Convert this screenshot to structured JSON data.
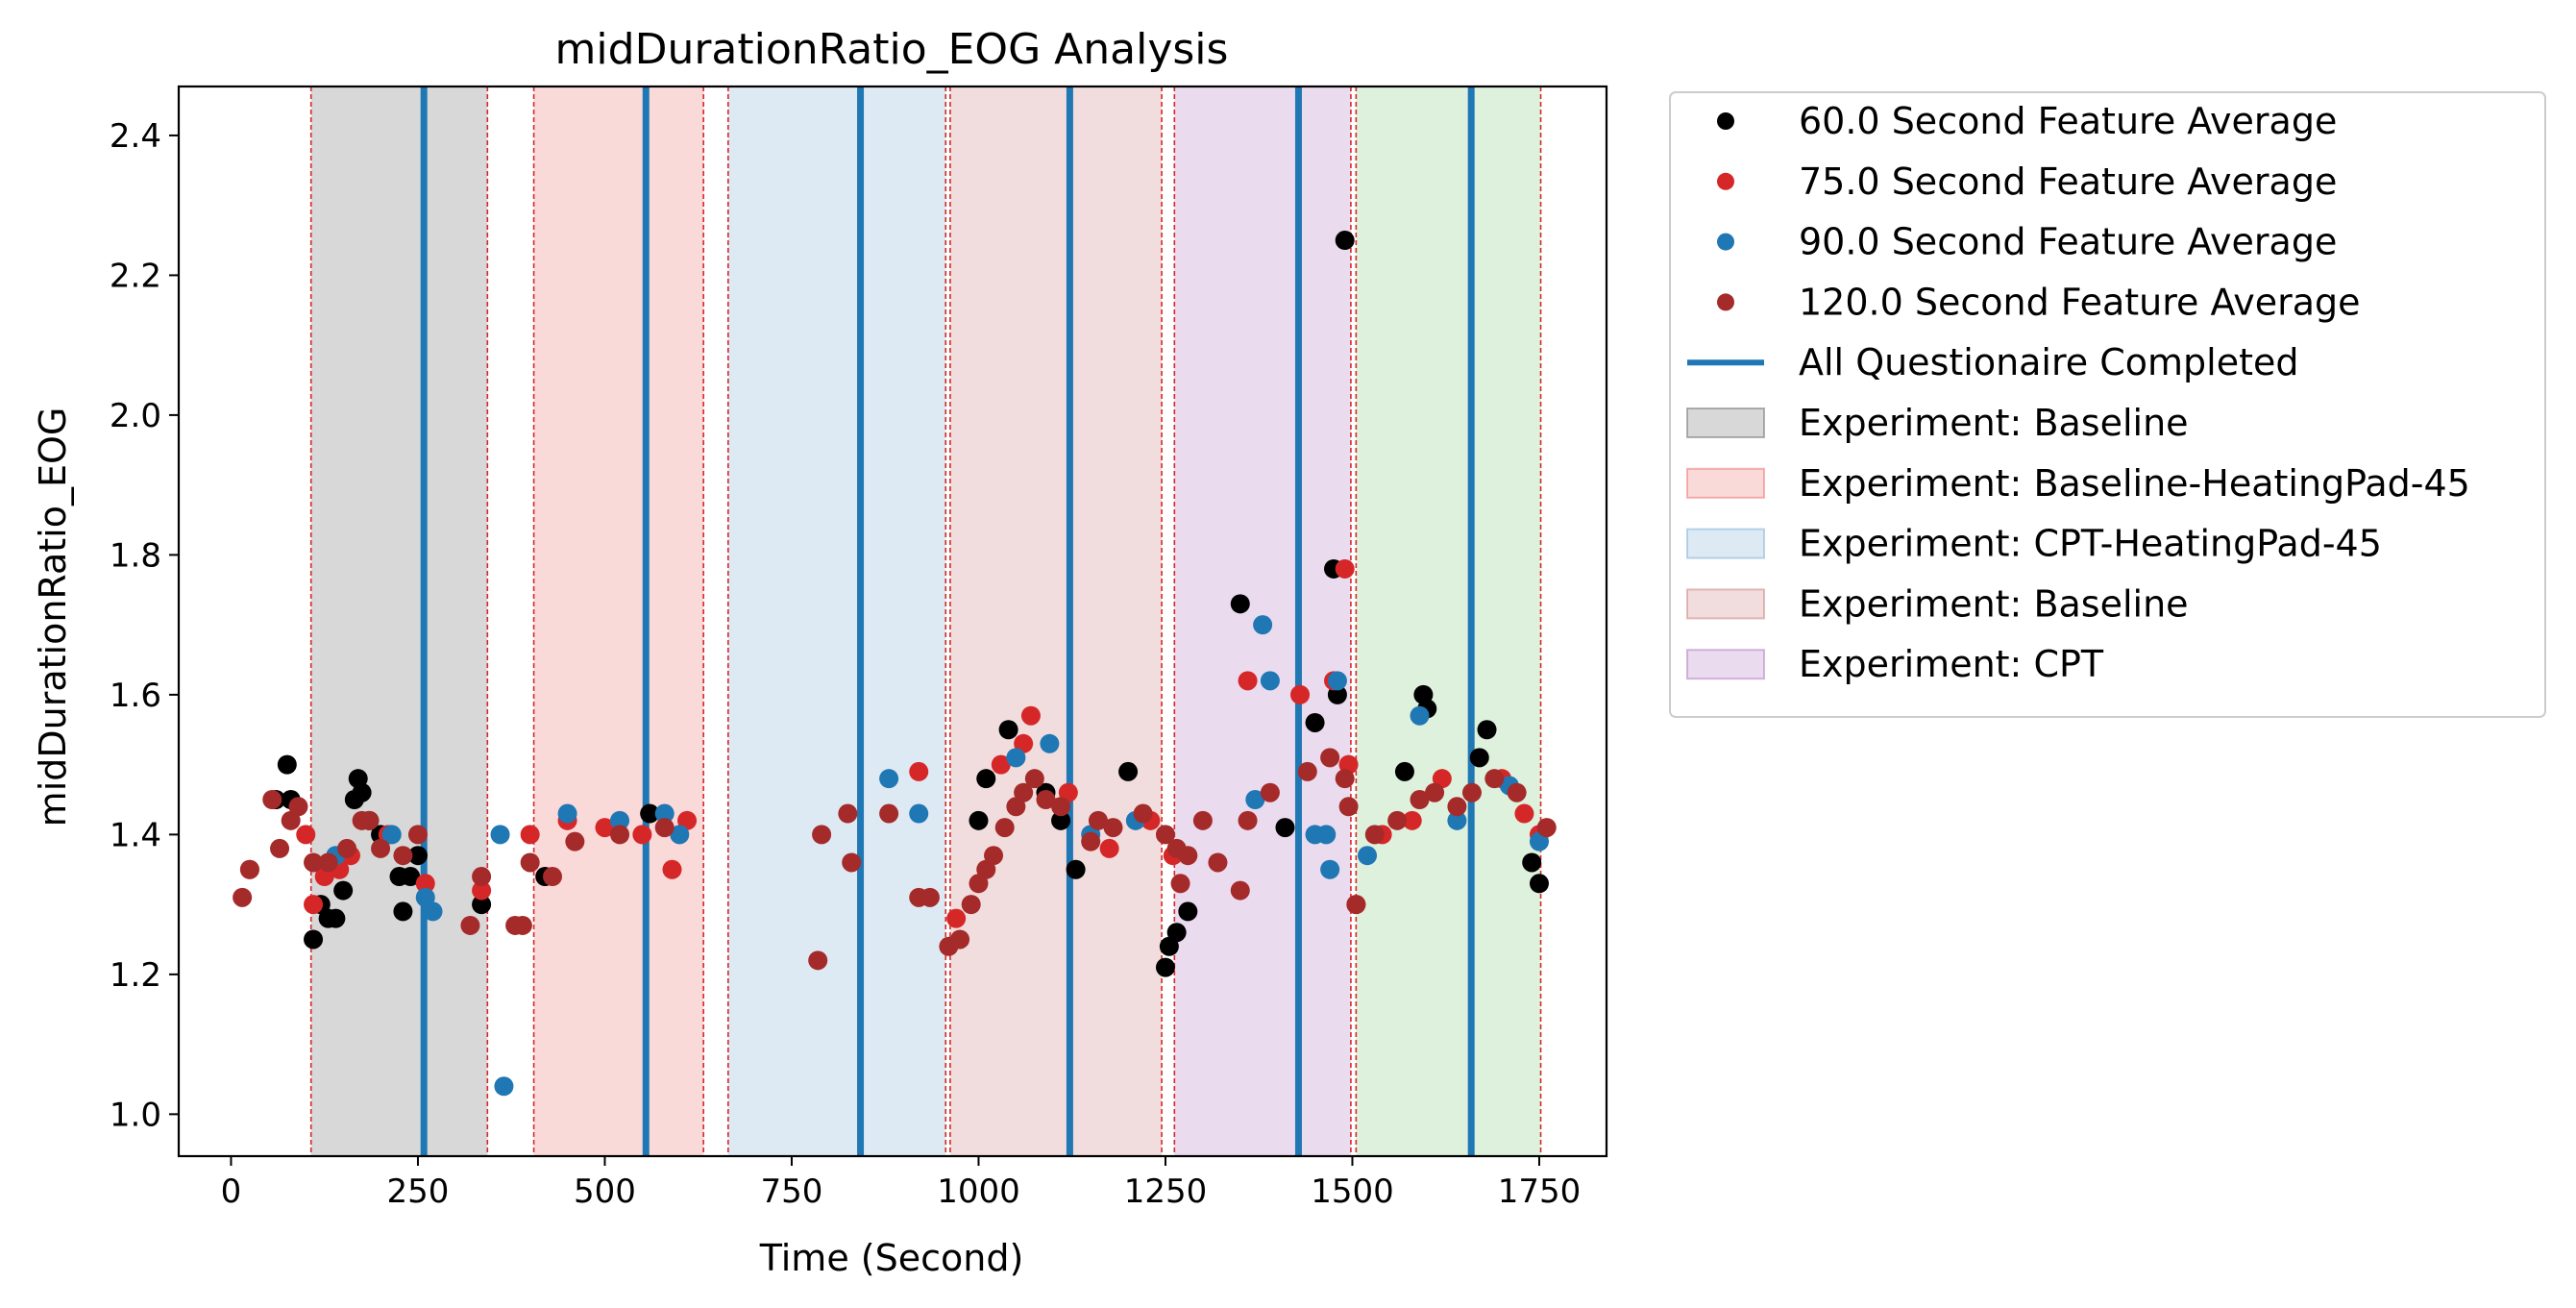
{
  "chart_data": {
    "type": "scatter",
    "title": "midDurationRatio_EOG Analysis",
    "xlabel": "Time (Second)",
    "ylabel": "midDurationRatio_EOG",
    "xlim": [
      -70,
      1840
    ],
    "ylim": [
      0.94,
      2.47
    ],
    "xticks": [
      0,
      250,
      500,
      750,
      1000,
      1250,
      1500,
      1750
    ],
    "yticks": [
      1.0,
      1.2,
      1.4,
      1.6,
      1.8,
      2.0,
      2.2,
      2.4
    ],
    "grid": false,
    "legend_position": "outside right, top",
    "series": [
      {
        "name": "60.0 Second Feature Average",
        "color": "#000000",
        "points": [
          [
            60,
            1.45
          ],
          [
            75,
            1.5
          ],
          [
            80,
            1.45
          ],
          [
            110,
            1.25
          ],
          [
            120,
            1.3
          ],
          [
            130,
            1.28
          ],
          [
            140,
            1.28
          ],
          [
            150,
            1.32
          ],
          [
            165,
            1.45
          ],
          [
            170,
            1.48
          ],
          [
            175,
            1.46
          ],
          [
            185,
            1.42
          ],
          [
            200,
            1.4
          ],
          [
            225,
            1.34
          ],
          [
            230,
            1.29
          ],
          [
            240,
            1.34
          ],
          [
            250,
            1.37
          ],
          [
            335,
            1.3
          ],
          [
            420,
            1.34
          ],
          [
            560,
            1.43
          ],
          [
            1000,
            1.42
          ],
          [
            1010,
            1.48
          ],
          [
            1040,
            1.55
          ],
          [
            1090,
            1.46
          ],
          [
            1110,
            1.42
          ],
          [
            1130,
            1.35
          ],
          [
            1200,
            1.49
          ],
          [
            1250,
            1.21
          ],
          [
            1255,
            1.24
          ],
          [
            1265,
            1.26
          ],
          [
            1280,
            1.29
          ],
          [
            1350,
            1.73
          ],
          [
            1410,
            1.41
          ],
          [
            1450,
            1.56
          ],
          [
            1475,
            1.78
          ],
          [
            1480,
            1.6
          ],
          [
            1490,
            2.25
          ],
          [
            1570,
            1.49
          ],
          [
            1595,
            1.6
          ],
          [
            1600,
            1.58
          ],
          [
            1670,
            1.51
          ],
          [
            1680,
            1.55
          ],
          [
            1740,
            1.36
          ],
          [
            1750,
            1.33
          ]
        ]
      },
      {
        "name": "75.0 Second Feature Average",
        "color": "#d62728",
        "points": [
          [
            25,
            1.35
          ],
          [
            100,
            1.4
          ],
          [
            110,
            1.3
          ],
          [
            125,
            1.34
          ],
          [
            145,
            1.35
          ],
          [
            160,
            1.37
          ],
          [
            210,
            1.4
          ],
          [
            260,
            1.33
          ],
          [
            335,
            1.32
          ],
          [
            400,
            1.4
          ],
          [
            450,
            1.42
          ],
          [
            500,
            1.41
          ],
          [
            550,
            1.4
          ],
          [
            590,
            1.35
          ],
          [
            610,
            1.42
          ],
          [
            920,
            1.49
          ],
          [
            970,
            1.28
          ],
          [
            1030,
            1.5
          ],
          [
            1060,
            1.53
          ],
          [
            1070,
            1.57
          ],
          [
            1120,
            1.46
          ],
          [
            1175,
            1.38
          ],
          [
            1230,
            1.42
          ],
          [
            1260,
            1.37
          ],
          [
            1360,
            1.62
          ],
          [
            1430,
            1.6
          ],
          [
            1475,
            1.62
          ],
          [
            1490,
            1.78
          ],
          [
            1495,
            1.5
          ],
          [
            1505,
            1.3
          ],
          [
            1540,
            1.4
          ],
          [
            1580,
            1.42
          ],
          [
            1620,
            1.48
          ],
          [
            1700,
            1.48
          ],
          [
            1730,
            1.43
          ],
          [
            1750,
            1.4
          ]
        ]
      },
      {
        "name": "90.0 Second Feature Average",
        "color": "#1f77b4",
        "points": [
          [
            140,
            1.37
          ],
          [
            215,
            1.4
          ],
          [
            260,
            1.31
          ],
          [
            270,
            1.29
          ],
          [
            360,
            1.4
          ],
          [
            365,
            1.04
          ],
          [
            450,
            1.43
          ],
          [
            520,
            1.42
          ],
          [
            580,
            1.43
          ],
          [
            600,
            1.4
          ],
          [
            880,
            1.48
          ],
          [
            920,
            1.43
          ],
          [
            1050,
            1.51
          ],
          [
            1095,
            1.53
          ],
          [
            1150,
            1.4
          ],
          [
            1210,
            1.42
          ],
          [
            1370,
            1.45
          ],
          [
            1380,
            1.7
          ],
          [
            1390,
            1.62
          ],
          [
            1450,
            1.4
          ],
          [
            1465,
            1.4
          ],
          [
            1470,
            1.35
          ],
          [
            1480,
            1.62
          ],
          [
            1520,
            1.37
          ],
          [
            1590,
            1.57
          ],
          [
            1640,
            1.42
          ],
          [
            1710,
            1.47
          ],
          [
            1750,
            1.39
          ]
        ]
      },
      {
        "name": "120.0 Second Feature Average",
        "color": "#a52a2a",
        "points": [
          [
            15,
            1.31
          ],
          [
            25,
            1.35
          ],
          [
            55,
            1.45
          ],
          [
            65,
            1.38
          ],
          [
            80,
            1.42
          ],
          [
            90,
            1.44
          ],
          [
            110,
            1.36
          ],
          [
            130,
            1.36
          ],
          [
            155,
            1.38
          ],
          [
            175,
            1.42
          ],
          [
            185,
            1.42
          ],
          [
            200,
            1.38
          ],
          [
            230,
            1.37
          ],
          [
            250,
            1.4
          ],
          [
            320,
            1.27
          ],
          [
            335,
            1.34
          ],
          [
            380,
            1.27
          ],
          [
            390,
            1.27
          ],
          [
            400,
            1.36
          ],
          [
            430,
            1.34
          ],
          [
            460,
            1.39
          ],
          [
            520,
            1.4
          ],
          [
            580,
            1.41
          ],
          [
            785,
            1.22
          ],
          [
            790,
            1.4
          ],
          [
            825,
            1.43
          ],
          [
            830,
            1.36
          ],
          [
            880,
            1.43
          ],
          [
            920,
            1.31
          ],
          [
            935,
            1.31
          ],
          [
            960,
            1.24
          ],
          [
            975,
            1.25
          ],
          [
            990,
            1.3
          ],
          [
            1000,
            1.33
          ],
          [
            1010,
            1.35
          ],
          [
            1020,
            1.37
          ],
          [
            1035,
            1.41
          ],
          [
            1050,
            1.44
          ],
          [
            1060,
            1.46
          ],
          [
            1075,
            1.48
          ],
          [
            1090,
            1.45
          ],
          [
            1110,
            1.44
          ],
          [
            1150,
            1.39
          ],
          [
            1160,
            1.42
          ],
          [
            1180,
            1.41
          ],
          [
            1220,
            1.43
          ],
          [
            1250,
            1.4
          ],
          [
            1265,
            1.38
          ],
          [
            1270,
            1.33
          ],
          [
            1280,
            1.37
          ],
          [
            1300,
            1.42
          ],
          [
            1320,
            1.36
          ],
          [
            1350,
            1.32
          ],
          [
            1360,
            1.42
          ],
          [
            1390,
            1.46
          ],
          [
            1440,
            1.49
          ],
          [
            1470,
            1.51
          ],
          [
            1490,
            1.48
          ],
          [
            1495,
            1.44
          ],
          [
            1505,
            1.3
          ],
          [
            1530,
            1.4
          ],
          [
            1560,
            1.42
          ],
          [
            1590,
            1.45
          ],
          [
            1610,
            1.46
          ],
          [
            1640,
            1.44
          ],
          [
            1660,
            1.46
          ],
          [
            1690,
            1.48
          ],
          [
            1720,
            1.46
          ],
          [
            1760,
            1.41
          ]
        ]
      }
    ],
    "vlines": {
      "name": "All Questionaire Completed",
      "color": "#1f77b4",
      "x": [
        258,
        555,
        842,
        1122,
        1428,
        1659
      ]
    },
    "boundary_lines": {
      "color": "#d62728",
      "x": [
        107,
        343,
        405,
        632,
        665,
        956,
        962,
        1245,
        1262,
        1498,
        1505,
        1752
      ]
    },
    "regions": [
      {
        "name": "Experiment: Baseline",
        "start": 107,
        "end": 343,
        "color": "#7f7f7f",
        "opacity": 0.3
      },
      {
        "name": "Experiment: Baseline-HeatingPad-45",
        "start": 405,
        "end": 632,
        "color": "#f08080",
        "opacity": 0.3
      },
      {
        "name": "Experiment: CPT-HeatingPad-45",
        "start": 665,
        "end": 956,
        "color": "#8fb8dc",
        "opacity": 0.3
      },
      {
        "name": "Experiment: Baseline",
        "start": 962,
        "end": 1245,
        "color": "#d09090",
        "opacity": 0.3
      },
      {
        "name": "Experiment: CPT",
        "start": 1262,
        "end": 1498,
        "color": "#b888c8",
        "opacity": 0.3
      },
      {
        "name": "",
        "start": 1505,
        "end": 1752,
        "color": "#90d090",
        "opacity": 0.3
      }
    ]
  }
}
